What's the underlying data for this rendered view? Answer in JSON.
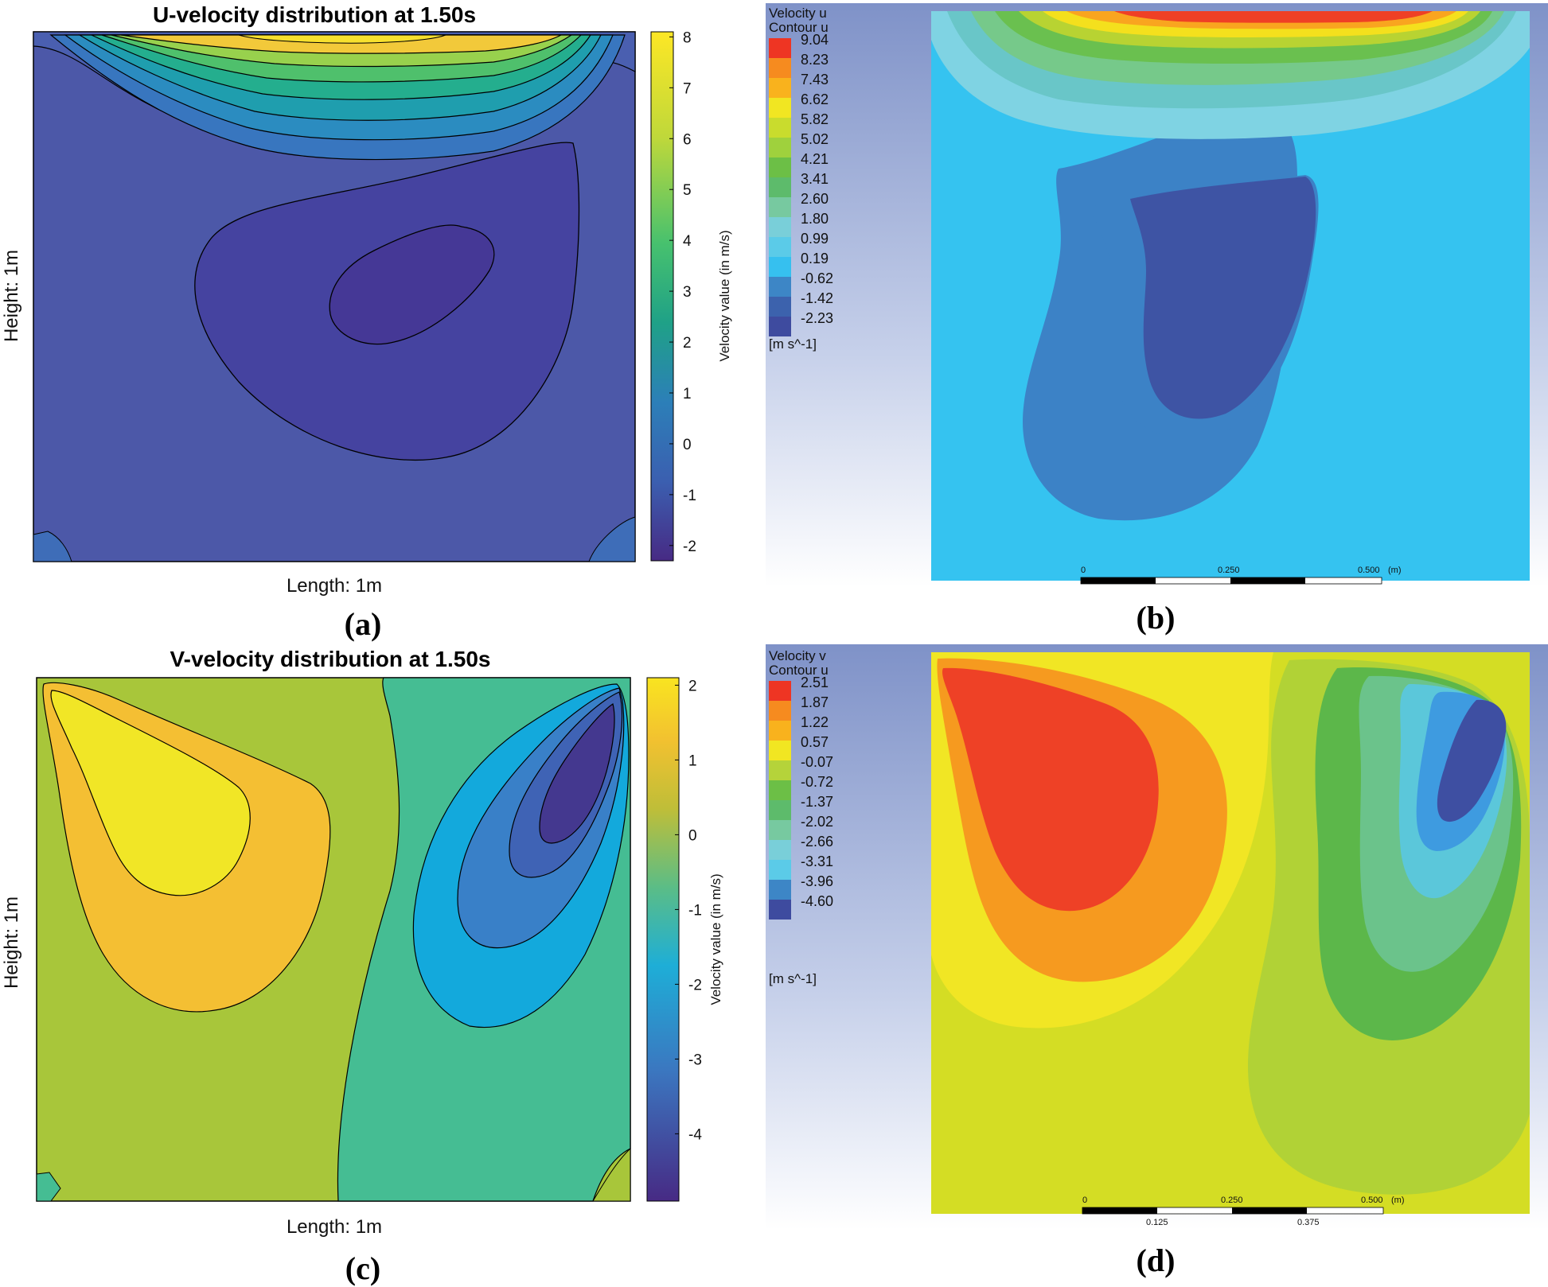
{
  "chart_data": [
    {
      "panel": "(a)",
      "type": "contour",
      "title": "U-velocity distribution at 1.50s",
      "xlabel": "Length: 1m",
      "ylabel": "Height: 1m",
      "colorbar_label": "Velocity value (in m/s)",
      "colorbar_ticks": [
        "8",
        "7",
        "6",
        "5",
        "4",
        "3",
        "2",
        "1",
        "0",
        "-1",
        "-2"
      ],
      "colorbar_range": [
        -2.3,
        8.1
      ],
      "colors": [
        "#fde725",
        "#a0da39",
        "#4ac16d",
        "#1fa187",
        "#277f8e",
        "#365c8d",
        "#46327e",
        "#440154"
      ]
    },
    {
      "panel": "(b)",
      "type": "contour",
      "legend_title": "Velocity u",
      "legend_subtitle": "Contour u",
      "legend_values": [
        "9.04",
        "8.23",
        "7.43",
        "6.62",
        "5.82",
        "5.02",
        "4.21",
        "3.41",
        "2.60",
        "1.80",
        "0.99",
        "0.19",
        "-0.62",
        "-1.42",
        "-2.23"
      ],
      "legend_units": "[m s^-1]",
      "scale_labels": [
        "0",
        "0.250",
        "0.500",
        "(m)"
      ]
    },
    {
      "panel": "(c)",
      "type": "contour",
      "title": "V-velocity distribution at 1.50s",
      "xlabel": "Length: 1m",
      "ylabel": "Height: 1m",
      "colorbar_label": "Velocity value (in m/s)",
      "colorbar_ticks": [
        "2",
        "1",
        "0",
        "-1",
        "-2",
        "-3",
        "-4"
      ],
      "colorbar_range": [
        -4.9,
        2.1
      ]
    },
    {
      "panel": "(d)",
      "type": "contour",
      "legend_title": "Velocity v",
      "legend_subtitle": "Contour u",
      "legend_values": [
        "2.51",
        "1.87",
        "1.22",
        "0.57",
        "-0.07",
        "-0.72",
        "-1.37",
        "-2.02",
        "-2.66",
        "-3.31",
        "-3.96",
        "-4.60"
      ],
      "legend_units": "[m s^-1]",
      "scale_labels": [
        "0",
        "0.250",
        "0.500",
        "(m)"
      ],
      "scale_sub_labels": [
        "0.125",
        "0.375"
      ]
    }
  ],
  "panel_labels": {
    "a": "(a)",
    "b": "(b)",
    "c": "(c)",
    "d": "(d)"
  }
}
